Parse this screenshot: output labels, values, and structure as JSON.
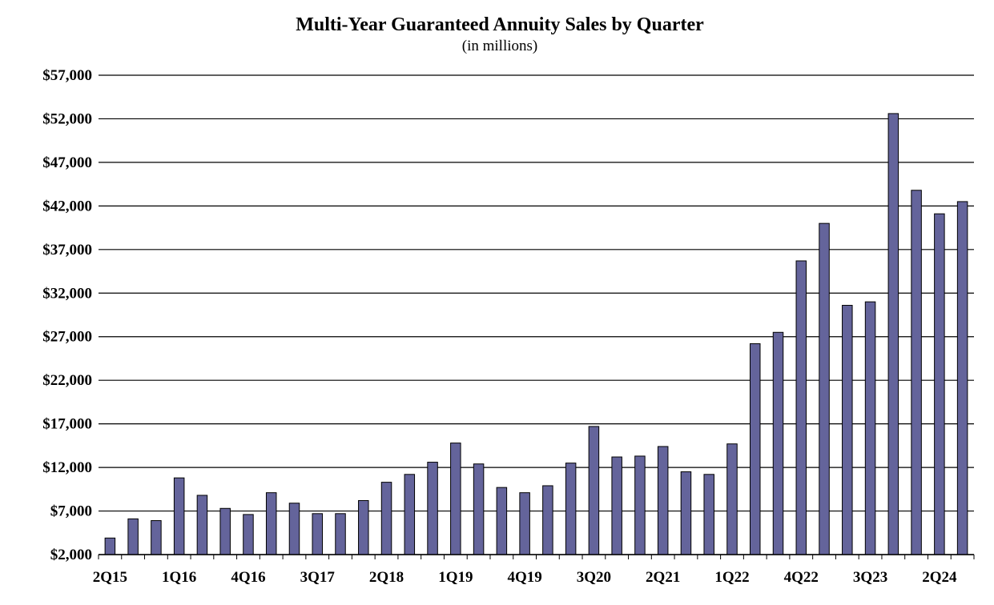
{
  "colors": {
    "bar_fill": "#64649b",
    "bar_stroke": "#000000",
    "grid": "#000000",
    "background": "#ffffff"
  },
  "chart_data": {
    "type": "bar",
    "title": "Multi-Year Guaranteed Annuity Sales by Quarter",
    "subtitle": "(in millions)",
    "xlabel": "",
    "ylabel": "",
    "ylim": [
      2000,
      57000
    ],
    "y_ticks": [
      2000,
      7000,
      12000,
      17000,
      22000,
      27000,
      32000,
      37000,
      42000,
      47000,
      52000,
      57000
    ],
    "y_tick_labels": [
      "$2,000",
      "$7,000",
      "$12,000",
      "$17,000",
      "$22,000",
      "$27,000",
      "$32,000",
      "$37,000",
      "$42,000",
      "$47,000",
      "$52,000",
      "$57,000"
    ],
    "grid": true,
    "legend": "none",
    "categories": [
      "2Q15",
      "3Q15",
      "4Q15",
      "1Q16",
      "2Q16",
      "3Q16",
      "4Q16",
      "1Q17",
      "2Q17",
      "3Q17",
      "4Q17",
      "1Q18",
      "2Q18",
      "3Q18",
      "4Q18",
      "1Q19",
      "2Q19",
      "3Q19",
      "4Q19",
      "1Q20",
      "2Q20",
      "3Q20",
      "4Q20",
      "1Q21",
      "2Q21",
      "3Q21",
      "4Q21",
      "1Q22",
      "2Q22",
      "3Q22",
      "4Q22",
      "1Q23",
      "2Q23",
      "3Q23",
      "4Q23",
      "1Q24",
      "2Q24",
      "3Q24"
    ],
    "visible_x_labels": [
      "2Q15",
      "1Q16",
      "4Q16",
      "3Q17",
      "2Q18",
      "1Q19",
      "4Q19",
      "3Q20",
      "2Q21",
      "1Q22",
      "4Q22",
      "3Q23",
      "2Q24"
    ],
    "values": [
      3900,
      6100,
      5900,
      10800,
      8800,
      7300,
      6600,
      9100,
      7900,
      6700,
      6700,
      8200,
      10300,
      11200,
      12600,
      14800,
      12400,
      9700,
      9100,
      9900,
      12500,
      16700,
      13200,
      13300,
      14400,
      11500,
      11200,
      14700,
      26200,
      27500,
      35700,
      40000,
      30600,
      31000,
      52600,
      43800,
      41100,
      42500
    ]
  }
}
